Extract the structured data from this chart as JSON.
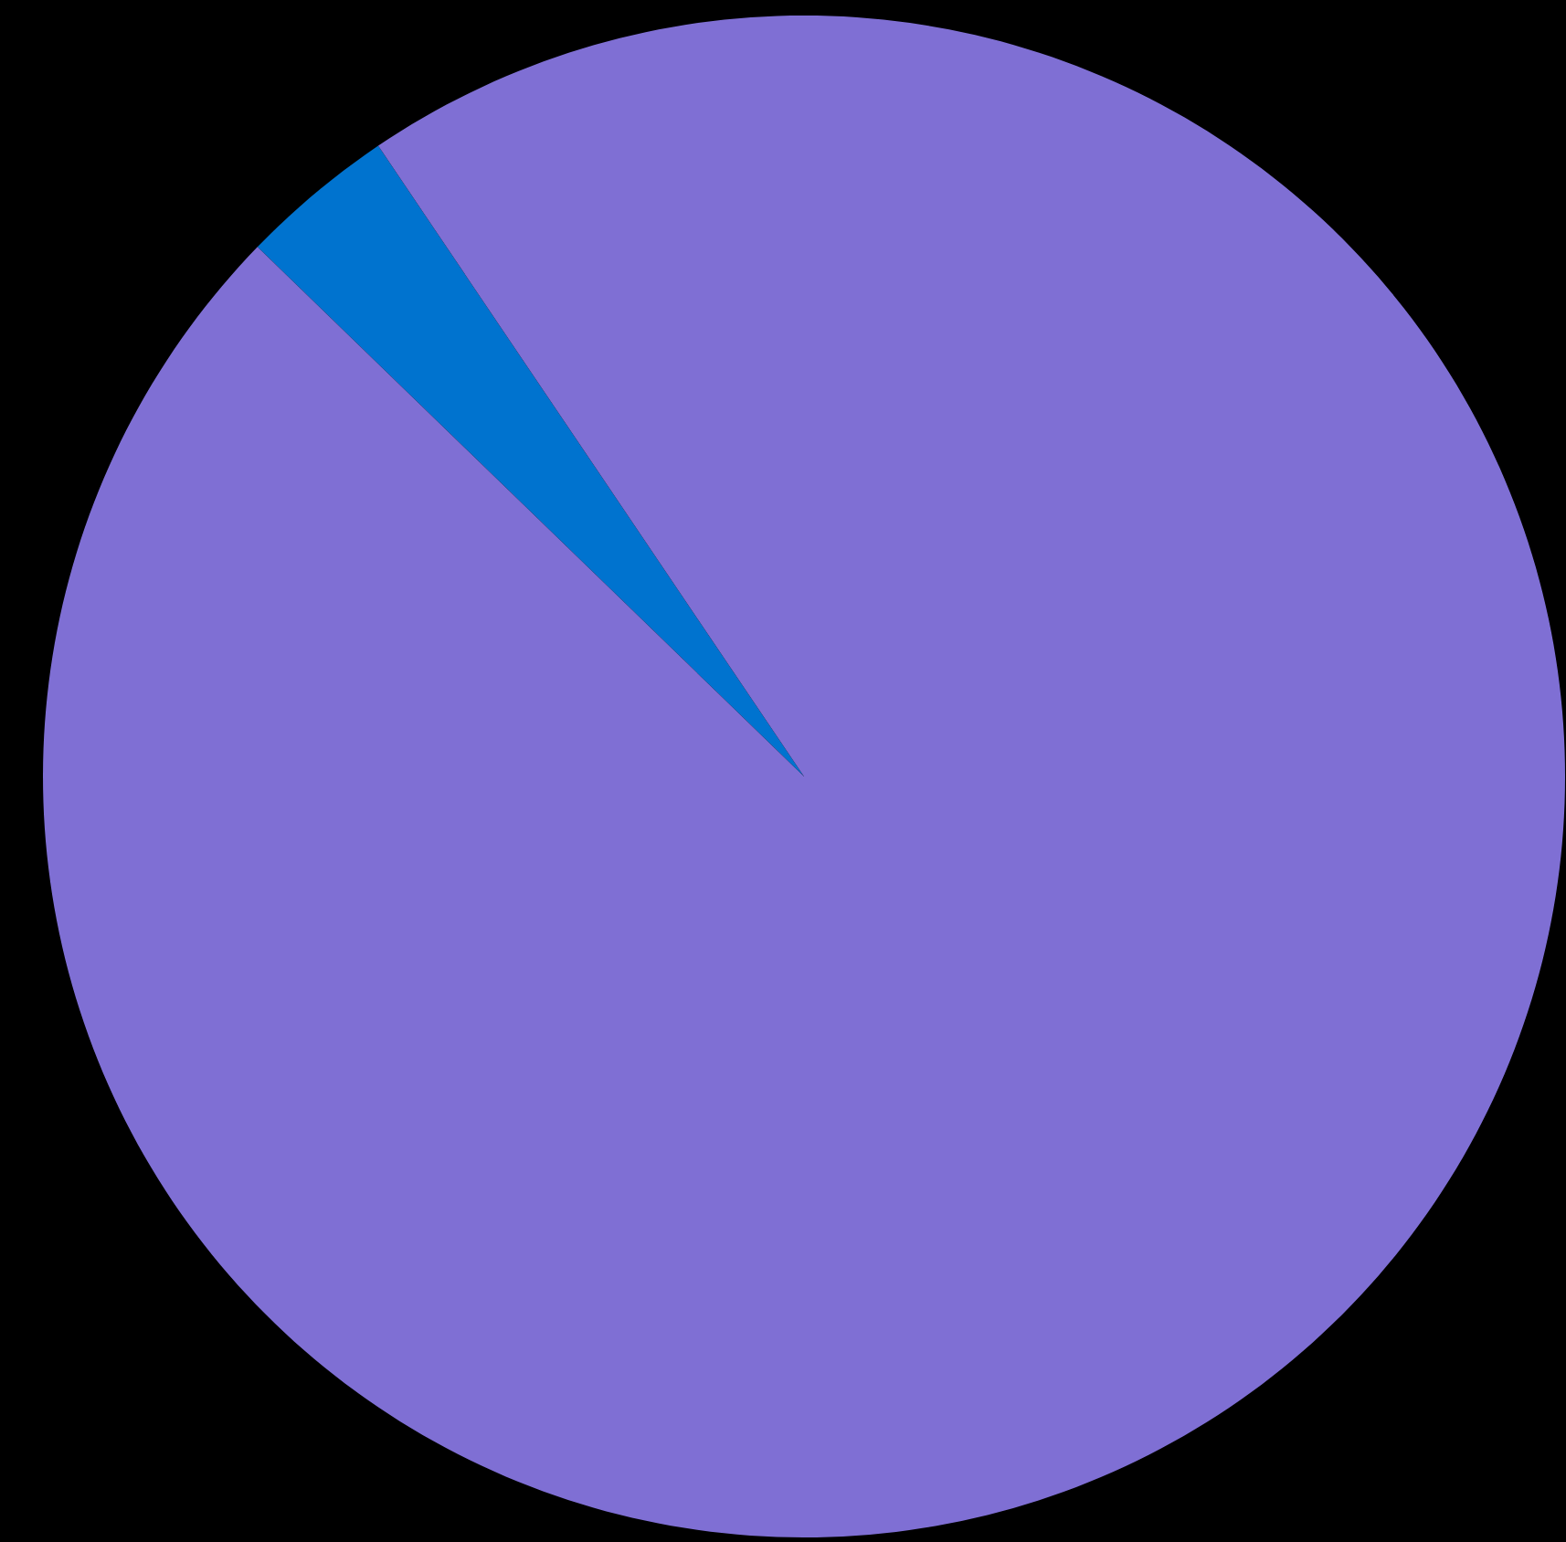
{
  "chart_data": {
    "type": "pie",
    "categories": [
      null,
      null
    ],
    "values": [
      3.3,
      96.7
    ],
    "colors": [
      "#0073cf",
      "#7f6fd4"
    ]
  }
}
